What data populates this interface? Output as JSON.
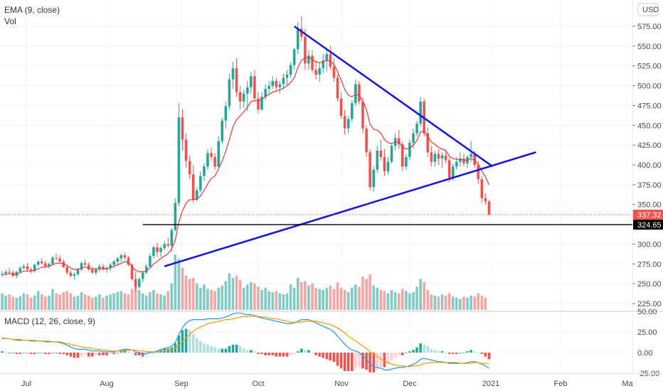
{
  "legend": {
    "main": "EMA (9, close)",
    "vol": "Vol",
    "macd": "MACD (12, 26, close, 9)",
    "currency": "USD"
  },
  "colors": {
    "up": "#26a69a",
    "down": "#ef5350",
    "up_vol": "#80cbc4",
    "down_vol": "#f5a5a4",
    "ema": "#e53935",
    "macd_line": "#2196f3",
    "signal_line": "#ff9800",
    "trendline": "#1a1ad6",
    "support": "#000000",
    "price_tag": "#ef5350"
  },
  "price_axis": {
    "ticks": [
      "575.00",
      "550.00",
      "525.00",
      "500.00",
      "475.00",
      "450.00",
      "425.00",
      "400.00",
      "375.00",
      "350.00",
      "300.00",
      "275.00",
      "250.00",
      "225.00"
    ],
    "last_price": "337.32",
    "support_label": "324.65"
  },
  "macd_axis": {
    "ticks": [
      "50.00",
      "25.00",
      "0.00",
      "-25.00"
    ]
  },
  "time_axis": {
    "labels": [
      "Jul",
      "Aug",
      "Sep",
      "Oct",
      "Nov",
      "Dec",
      "2021",
      "Feb",
      "Ma"
    ]
  },
  "chart_data": {
    "type": "candlestick",
    "x_unit": "trading day (index from first visible session)",
    "ohlc": [
      [
        262,
        266,
        259,
        263
      ],
      [
        263,
        268,
        261,
        265
      ],
      [
        265,
        270,
        262,
        264
      ],
      [
        264,
        267,
        258,
        260
      ],
      [
        260,
        266,
        257,
        265
      ],
      [
        265,
        272,
        263,
        270
      ],
      [
        270,
        275,
        268,
        272
      ],
      [
        272,
        276,
        266,
        268
      ],
      [
        268,
        271,
        263,
        266
      ],
      [
        266,
        275,
        264,
        274
      ],
      [
        274,
        280,
        272,
        278
      ],
      [
        278,
        282,
        274,
        276
      ],
      [
        276,
        279,
        270,
        272
      ],
      [
        272,
        277,
        269,
        275
      ],
      [
        275,
        285,
        273,
        283
      ],
      [
        283,
        288,
        279,
        282
      ],
      [
        282,
        286,
        276,
        278
      ],
      [
        278,
        281,
        270,
        271
      ],
      [
        271,
        274,
        262,
        264
      ],
      [
        264,
        268,
        258,
        260
      ],
      [
        260,
        264,
        255,
        262
      ],
      [
        262,
        270,
        260,
        268
      ],
      [
        268,
        278,
        266,
        276
      ],
      [
        276,
        281,
        272,
        274
      ],
      [
        274,
        277,
        266,
        268
      ],
      [
        268,
        272,
        262,
        264
      ],
      [
        264,
        270,
        261,
        268
      ],
      [
        268,
        275,
        265,
        272
      ],
      [
        272,
        275,
        266,
        268
      ],
      [
        268,
        272,
        264,
        270
      ],
      [
        270,
        276,
        266,
        274
      ],
      [
        274,
        280,
        270,
        278
      ],
      [
        278,
        284,
        274,
        282
      ],
      [
        282,
        288,
        278,
        286
      ],
      [
        286,
        290,
        280,
        283
      ],
      [
        283,
        285,
        272,
        274
      ],
      [
        274,
        276,
        254,
        256
      ],
      [
        256,
        265,
        240,
        246
      ],
      [
        246,
        258,
        244,
        256
      ],
      [
        256,
        266,
        252,
        264
      ],
      [
        264,
        275,
        262,
        272
      ],
      [
        272,
        288,
        270,
        285
      ],
      [
        285,
        298,
        282,
        296
      ],
      [
        296,
        302,
        284,
        290
      ],
      [
        290,
        298,
        284,
        295
      ],
      [
        295,
        304,
        292,
        300
      ],
      [
        300,
        308,
        296,
        298
      ],
      [
        298,
        320,
        290,
        318
      ],
      [
        318,
        358,
        316,
        352
      ],
      [
        352,
        478,
        348,
        460
      ],
      [
        460,
        470,
        418,
        432
      ],
      [
        432,
        440,
        396,
        405
      ],
      [
        405,
        412,
        382,
        388
      ],
      [
        388,
        400,
        352,
        356
      ],
      [
        356,
        372,
        354,
        368
      ],
      [
        368,
        392,
        365,
        386
      ],
      [
        386,
        402,
        380,
        398
      ],
      [
        398,
        420,
        394,
        415
      ],
      [
        415,
        422,
        405,
        410
      ],
      [
        410,
        415,
        394,
        398
      ],
      [
        398,
        436,
        396,
        430
      ],
      [
        430,
        460,
        426,
        456
      ],
      [
        456,
        480,
        446,
        474
      ],
      [
        474,
        515,
        470,
        508
      ],
      [
        508,
        530,
        496,
        522
      ],
      [
        522,
        535,
        486,
        492
      ],
      [
        492,
        500,
        470,
        480
      ],
      [
        480,
        495,
        472,
        490
      ],
      [
        490,
        506,
        468,
        498
      ],
      [
        498,
        518,
        490,
        512
      ],
      [
        512,
        520,
        480,
        484
      ],
      [
        484,
        492,
        465,
        470
      ],
      [
        470,
        492,
        468,
        486
      ],
      [
        486,
        502,
        482,
        496
      ],
      [
        496,
        506,
        488,
        500
      ],
      [
        500,
        512,
        496,
        506
      ],
      [
        506,
        510,
        494,
        498
      ],
      [
        498,
        506,
        490,
        502
      ],
      [
        502,
        515,
        495,
        510
      ],
      [
        510,
        520,
        500,
        514
      ],
      [
        514,
        530,
        510,
        526
      ],
      [
        526,
        548,
        520,
        546
      ],
      [
        546,
        580,
        540,
        572
      ],
      [
        572,
        588,
        556,
        562
      ],
      [
        562,
        572,
        520,
        528
      ],
      [
        528,
        545,
        520,
        538
      ],
      [
        538,
        545,
        516,
        520
      ],
      [
        520,
        532,
        508,
        514
      ],
      [
        514,
        530,
        505,
        522
      ],
      [
        522,
        540,
        516,
        532
      ],
      [
        532,
        546,
        518,
        540
      ],
      [
        540,
        550,
        520,
        524
      ],
      [
        524,
        535,
        505,
        510
      ],
      [
        510,
        514,
        480,
        484
      ],
      [
        484,
        492,
        458,
        462
      ],
      [
        462,
        470,
        438,
        446
      ],
      [
        446,
        462,
        440,
        458
      ],
      [
        458,
        482,
        454,
        478
      ],
      [
        478,
        508,
        474,
        502
      ],
      [
        502,
        506,
        476,
        480
      ],
      [
        480,
        484,
        440,
        446
      ],
      [
        446,
        450,
        410,
        416
      ],
      [
        416,
        420,
        368,
        372
      ],
      [
        372,
        398,
        366,
        394
      ],
      [
        394,
        424,
        390,
        418
      ],
      [
        418,
        432,
        405,
        410
      ],
      [
        410,
        420,
        386,
        392
      ],
      [
        392,
        410,
        388,
        404
      ],
      [
        404,
        428,
        402,
        424
      ],
      [
        424,
        440,
        418,
        434
      ],
      [
        434,
        444,
        420,
        426
      ],
      [
        426,
        430,
        392,
        398
      ],
      [
        398,
        414,
        394,
        410
      ],
      [
        410,
        432,
        406,
        428
      ],
      [
        428,
        446,
        420,
        440
      ],
      [
        440,
        456,
        436,
        452
      ],
      [
        452,
        486,
        448,
        480
      ],
      [
        480,
        484,
        436,
        440
      ],
      [
        440,
        448,
        410,
        416
      ],
      [
        416,
        424,
        398,
        404
      ],
      [
        404,
        418,
        398,
        414
      ],
      [
        414,
        420,
        400,
        408
      ],
      [
        408,
        416,
        396,
        412
      ],
      [
        412,
        418,
        402,
        406
      ],
      [
        406,
        410,
        378,
        384
      ],
      [
        384,
        402,
        380,
        398
      ],
      [
        398,
        410,
        394,
        404
      ],
      [
        404,
        416,
        398,
        408
      ],
      [
        408,
        414,
        398,
        402
      ],
      [
        402,
        412,
        396,
        410
      ],
      [
        410,
        430,
        404,
        414
      ],
      [
        414,
        418,
        396,
        400
      ],
      [
        400,
        404,
        376,
        382
      ],
      [
        382,
        386,
        352,
        358
      ],
      [
        358,
        364,
        350,
        354
      ],
      [
        354,
        356,
        336,
        337.32
      ]
    ],
    "volume_scale": "relative (0–100)",
    "volume": [
      30,
      26,
      28,
      24,
      22,
      25,
      30,
      28,
      22,
      26,
      34,
      28,
      24,
      26,
      38,
      30,
      28,
      32,
      34,
      30,
      24,
      26,
      32,
      28,
      26,
      22,
      24,
      28,
      22,
      26,
      28,
      30,
      32,
      34,
      30,
      28,
      38,
      42,
      36,
      30,
      26,
      32,
      36,
      30,
      28,
      26,
      34,
      48,
      100,
      92,
      76,
      62,
      56,
      58,
      48,
      40,
      46,
      38,
      36,
      34,
      40,
      44,
      52,
      66,
      58,
      62,
      54,
      40,
      46,
      50,
      48,
      42,
      36,
      40,
      34,
      32,
      34,
      30,
      28,
      30,
      46,
      40,
      58,
      50,
      52,
      44,
      48,
      40,
      38,
      36,
      40,
      44,
      38,
      50,
      40,
      36,
      32,
      40,
      46,
      42,
      60,
      56,
      64,
      44,
      40,
      36,
      34,
      30,
      36,
      32,
      30,
      38,
      34,
      30,
      32,
      42,
      56,
      50,
      36,
      28,
      26,
      24,
      28,
      26,
      30,
      24,
      22,
      20,
      24,
      22,
      26,
      24,
      30,
      26,
      22
    ],
    "ema": [
      261,
      262,
      263,
      262,
      262,
      264,
      266,
      266,
      266,
      267,
      269,
      271,
      271,
      272,
      274,
      276,
      276,
      275,
      273,
      270,
      268,
      268,
      270,
      271,
      270,
      269,
      269,
      269,
      269,
      269,
      270,
      272,
      274,
      276,
      278,
      277,
      272,
      267,
      265,
      265,
      266,
      270,
      275,
      278,
      282,
      285,
      288,
      294,
      305,
      328,
      342,
      352,
      356,
      356,
      357,
      361,
      368,
      376,
      383,
      386,
      395,
      405,
      417,
      432,
      448,
      457,
      462,
      467,
      473,
      480,
      481,
      481,
      483,
      486,
      489,
      492,
      493,
      495,
      497,
      500,
      504,
      510,
      523,
      532,
      535,
      536,
      533,
      530,
      529,
      530,
      532,
      531,
      527,
      518,
      507,
      495,
      488,
      486,
      489,
      488,
      481,
      470,
      452,
      445,
      444,
      440,
      432,
      428,
      427,
      429,
      429,
      423,
      420,
      421,
      425,
      431,
      442,
      442,
      436,
      429,
      426,
      422,
      420,
      418,
      411,
      408,
      407,
      407,
      406,
      406,
      408,
      406,
      401,
      392,
      385,
      375
    ],
    "macd": [
      18,
      17,
      17,
      16,
      15,
      15,
      15,
      15,
      14,
      14,
      14,
      14,
      13,
      13,
      13,
      13,
      12,
      11,
      9,
      7,
      5,
      4,
      4,
      4,
      3,
      2,
      2,
      2,
      1,
      1,
      1,
      1,
      2,
      3,
      4,
      4,
      3,
      1,
      0,
      -1,
      -1,
      0,
      1,
      2,
      4,
      5,
      6,
      8,
      12,
      22,
      30,
      36,
      39,
      40,
      40,
      40,
      40,
      41,
      41,
      41,
      41,
      42,
      43,
      45,
      47,
      48,
      48,
      47,
      46,
      46,
      45,
      43,
      42,
      41,
      40,
      39,
      38,
      37,
      36,
      35,
      35,
      36,
      38,
      40,
      40,
      40,
      38,
      36,
      34,
      32,
      30,
      28,
      25,
      20,
      15,
      10,
      6,
      3,
      2,
      0,
      -4,
      -8,
      -14,
      -17,
      -18,
      -19,
      -21,
      -21,
      -20,
      -19,
      -18,
      -18,
      -17,
      -16,
      -14,
      -12,
      -8,
      -7,
      -8,
      -9,
      -10,
      -11,
      -11,
      -12,
      -13,
      -13,
      -13,
      -13,
      -13,
      -12,
      -11,
      -11,
      -12,
      -14,
      -16,
      -19
    ],
    "signal": [
      17,
      17,
      17,
      16,
      16,
      16,
      15,
      15,
      15,
      15,
      14,
      14,
      14,
      14,
      13,
      13,
      13,
      12,
      11,
      10,
      9,
      8,
      7,
      6,
      6,
      5,
      4,
      4,
      3,
      3,
      2,
      2,
      2,
      2,
      2,
      3,
      3,
      3,
      2,
      2,
      1,
      1,
      1,
      1,
      2,
      2,
      3,
      4,
      5,
      9,
      13,
      18,
      22,
      26,
      29,
      31,
      33,
      35,
      36,
      37,
      38,
      39,
      40,
      40,
      41,
      42,
      43,
      44,
      44,
      44,
      44,
      44,
      43,
      43,
      42,
      41,
      41,
      40,
      39,
      38,
      37,
      37,
      37,
      37,
      38,
      38,
      38,
      38,
      37,
      36,
      35,
      34,
      32,
      30,
      27,
      24,
      20,
      17,
      14,
      11,
      8,
      5,
      1,
      -2,
      -5,
      -8,
      -10,
      -12,
      -14,
      -15,
      -16,
      -16,
      -17,
      -17,
      -16,
      -16,
      -15,
      -13,
      -13,
      -12,
      -12,
      -12,
      -12,
      -12,
      -12,
      -12,
      -12,
      -13,
      -13,
      -13,
      -13,
      -12,
      -12,
      -13,
      -13,
      -14
    ],
    "support_level": 324.65,
    "last_close": 337.32,
    "trendline_down": [
      [
        81,
        575
      ],
      [
        136,
        398
      ]
    ],
    "trendline_up": [
      [
        45,
        272
      ],
      [
        148,
        416
      ]
    ],
    "price_range": [
      215,
      590
    ],
    "macd_range": [
      -25,
      52
    ]
  }
}
